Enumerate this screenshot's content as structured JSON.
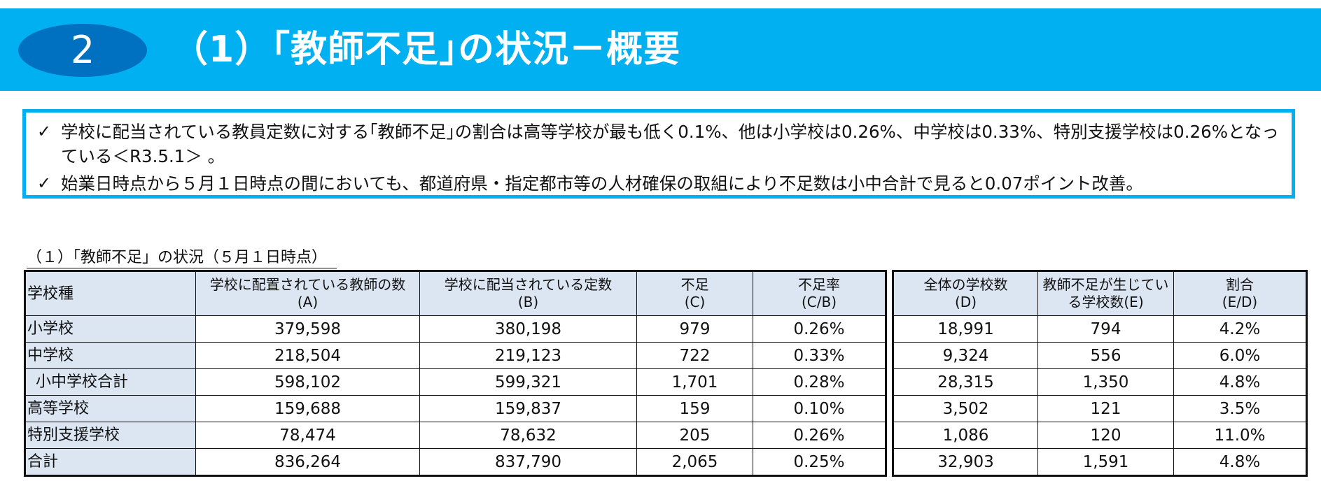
{
  "banner": {
    "badge": "2",
    "title": "（1）｢教師不足｣の状況－概要"
  },
  "summary": {
    "bullets": [
      "学校に配当されている教員定数に対する｢教師不足｣の割合は高等学校が最も低く0.1%、他は小学校は0.26%、中学校は0.33%、特別支援学校は0.26%となっている＜R3.5.1＞ 。",
      "始業日時点から５月１日時点の間においても、都道府県・指定都市等の人材確保の取組により不足数は小中合計で見ると0.07ポイント改善。"
    ],
    "check_icon": "✓"
  },
  "table": {
    "caption": "（１）「教師不足」の状況（５月１日時点）",
    "left_headers": [
      {
        "line1": "学校種",
        "line2": ""
      },
      {
        "line1": "学校に配置されている教師の数",
        "line2": "(A)"
      },
      {
        "line1": "学校に配当されている定数",
        "line2": "(B)"
      },
      {
        "line1": "不足",
        "line2": "(C)"
      },
      {
        "line1": "不足率",
        "line2": "(C/B)"
      }
    ],
    "right_headers": [
      {
        "line1": "全体の学校数",
        "line2": "(D)"
      },
      {
        "line1": "教師不足が生じてい",
        "line2": "る学校数(E)"
      },
      {
        "line1": "割合",
        "line2": "(E/D)"
      }
    ],
    "rows": [
      {
        "label": "小学校",
        "a": "379,598",
        "b": "380,198",
        "c": "979",
        "cb": "0.26%",
        "d": "18,991",
        "e": "794",
        "ed": "4.2%"
      },
      {
        "label": "中学校",
        "a": "218,504",
        "b": "219,123",
        "c": "722",
        "cb": "0.33%",
        "d": "9,324",
        "e": "556",
        "ed": "6.0%"
      },
      {
        "label": "小中学校合計",
        "a": "598,102",
        "b": "599,321",
        "c": "1,701",
        "cb": "0.28%",
        "d": "28,315",
        "e": "1,350",
        "ed": "4.8%"
      },
      {
        "label": "高等学校",
        "a": "159,688",
        "b": "159,837",
        "c": "159",
        "cb": "0.10%",
        "d": "3,502",
        "e": "121",
        "ed": "3.5%"
      },
      {
        "label": "特別支援学校",
        "a": "78,474",
        "b": "78,632",
        "c": "205",
        "cb": "0.26%",
        "d": "1,086",
        "e": "120",
        "ed": "11.0%"
      },
      {
        "label": "合計",
        "a": "836,264",
        "b": "837,790",
        "c": "2,065",
        "cb": "0.25%",
        "d": "32,903",
        "e": "1,591",
        "ed": "4.8%"
      }
    ]
  },
  "colors": {
    "banner": "#00b0f0",
    "badge": "#0070c0",
    "header_fill": "#dce6f2"
  }
}
